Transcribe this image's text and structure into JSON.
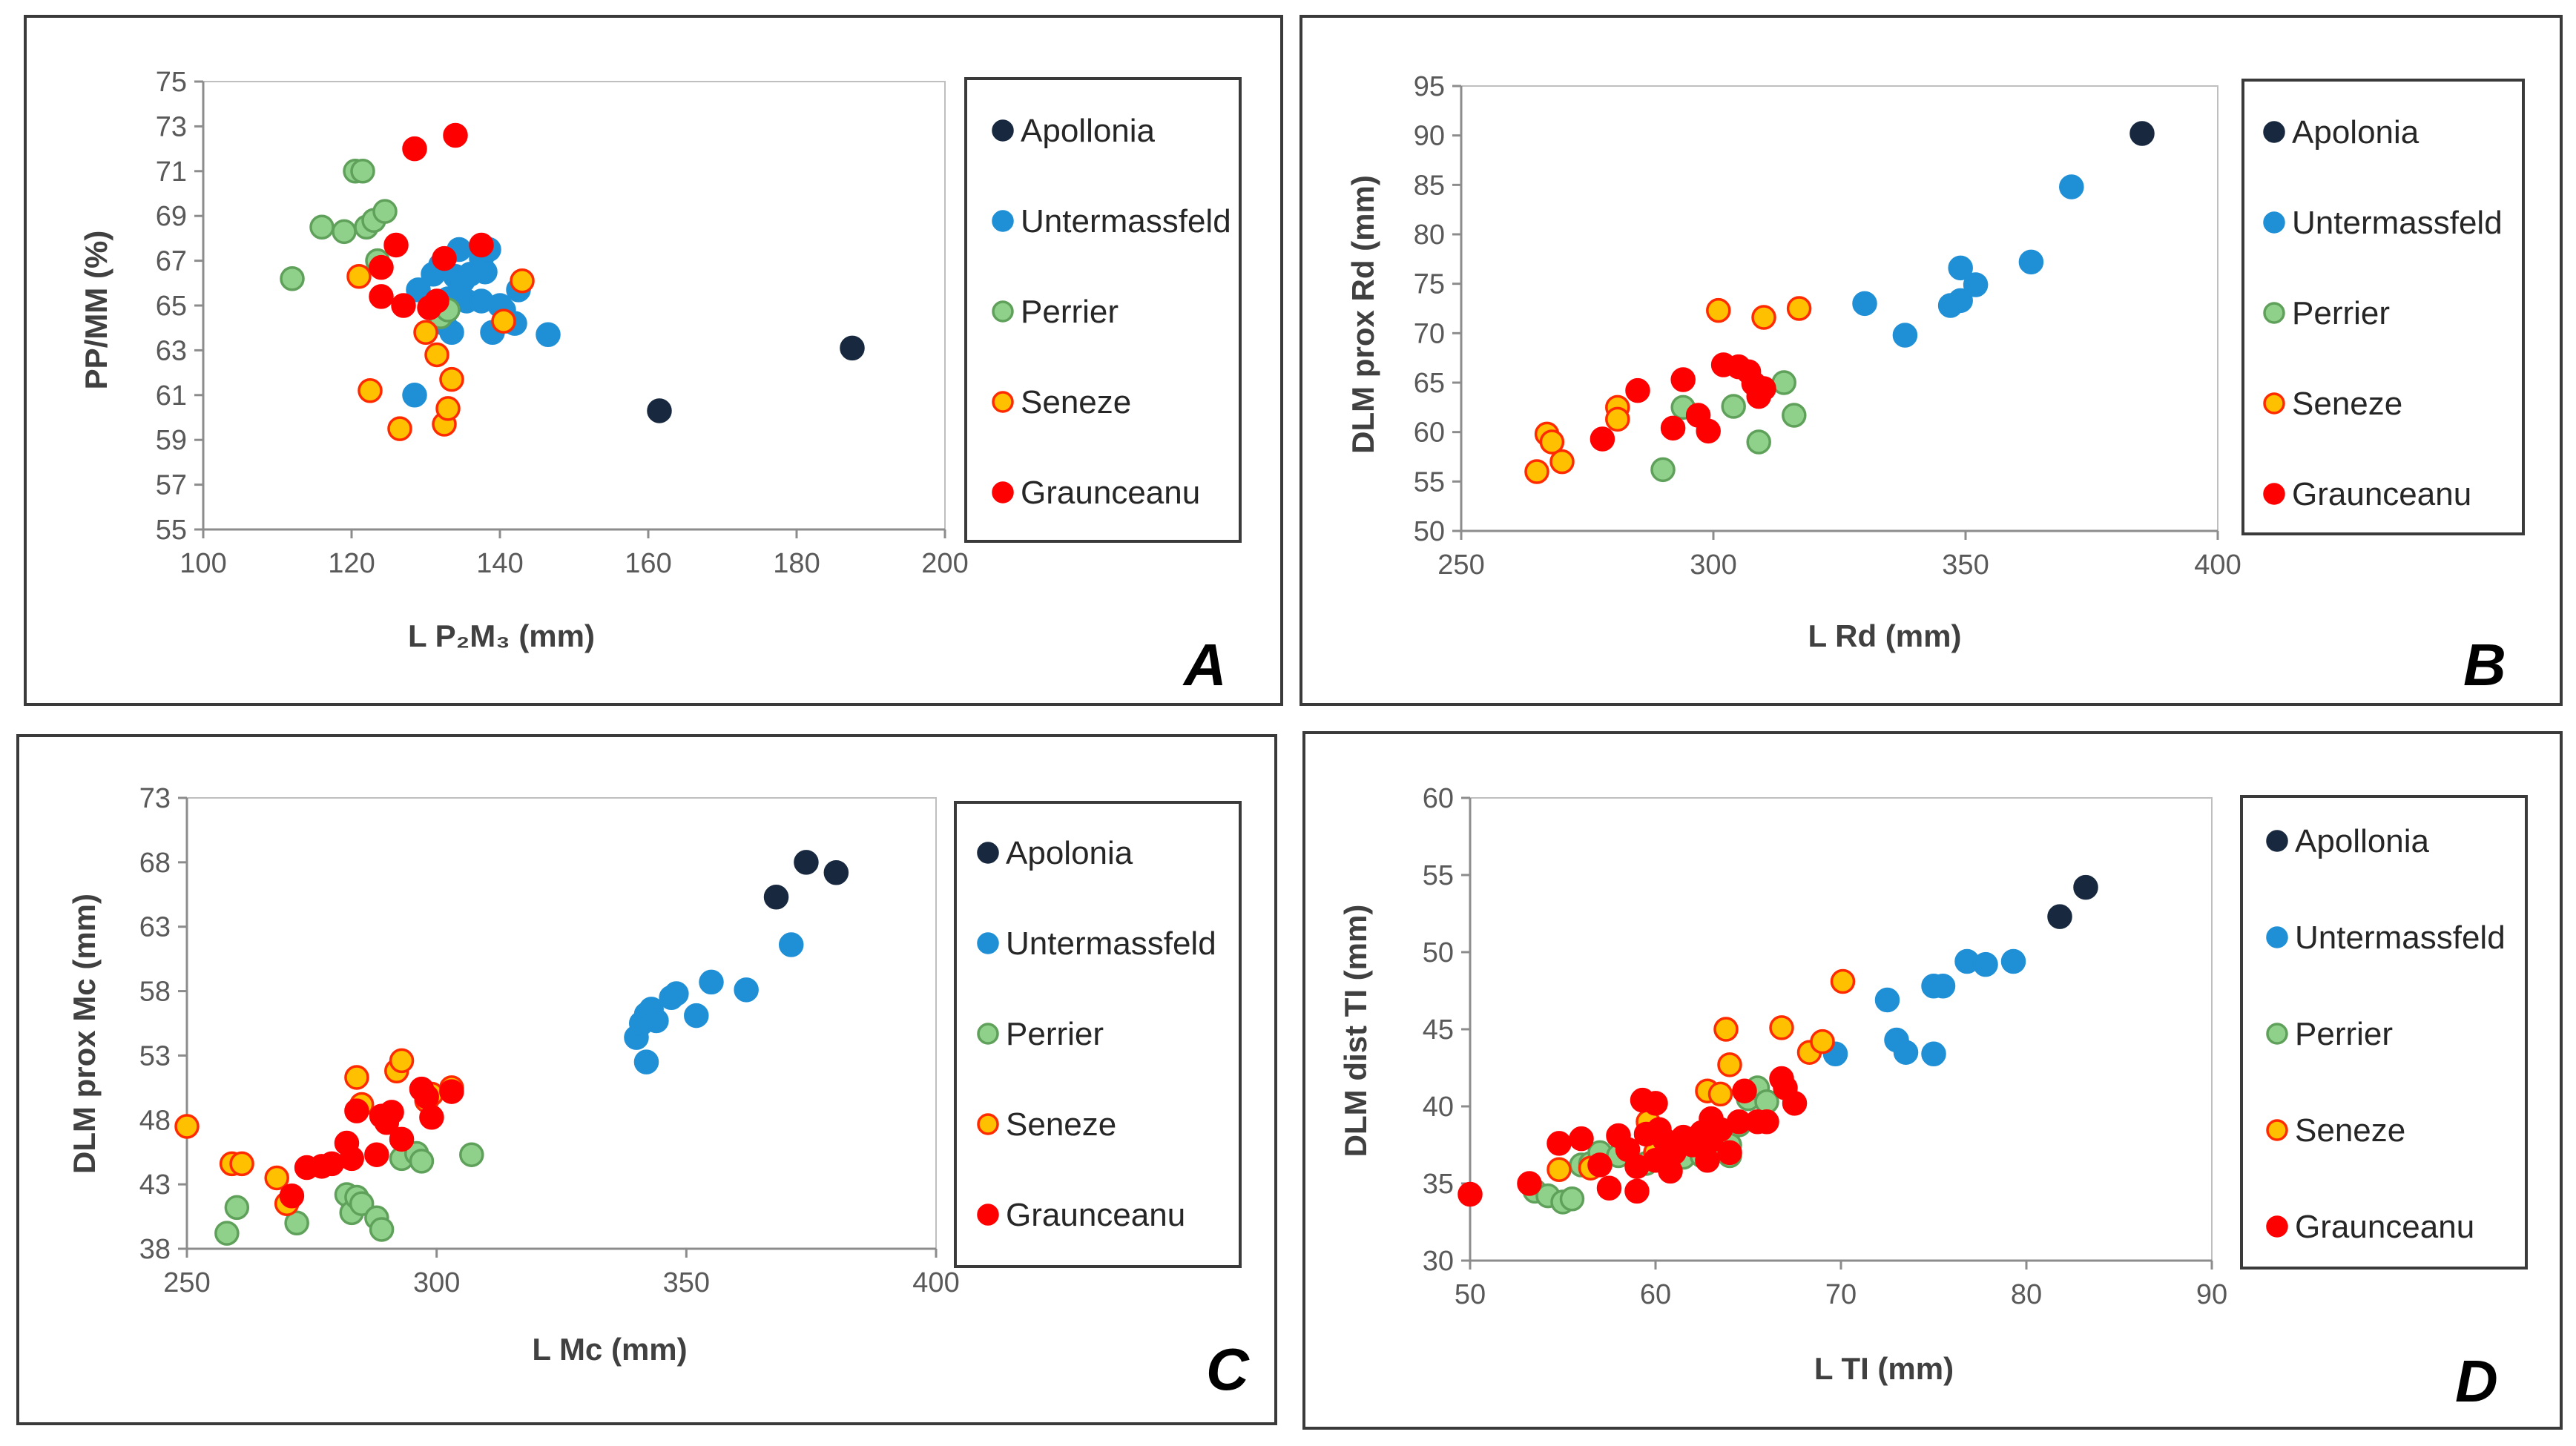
{
  "series_styles": {
    "Apollonia": {
      "fill": "#17283F",
      "stroke": "#17283F"
    },
    "Untermassfeld": {
      "fill": "#1F8FD6",
      "stroke": "#1F8FD6"
    },
    "Perrier": {
      "fill": "#8FD18A",
      "stroke": "#5FA05A"
    },
    "Seneze": {
      "fill": "#FFC000",
      "stroke": "#FF2A00"
    },
    "Graunceanu": {
      "fill": "#FF0000",
      "stroke": "#FF0000"
    }
  },
  "chart_data": [
    {
      "panel": "A",
      "type": "scatter",
      "xlabel": "L P₂M₃ (mm)",
      "ylabel": "PP/MM (%)",
      "xlim": [
        100,
        200
      ],
      "ylim": [
        55,
        75
      ],
      "xticks": [
        100,
        120,
        140,
        160,
        180,
        200
      ],
      "yticks": [
        55,
        57,
        59,
        61,
        63,
        65,
        67,
        69,
        71,
        73,
        75
      ],
      "legend": [
        "Apollonia",
        "Untermassfeld",
        "Perrier",
        "Seneze",
        "Graunceanu"
      ],
      "series": [
        {
          "name": "Apollonia",
          "points": [
            [
              161.5,
              60.3
            ],
            [
              187.5,
              63.1
            ]
          ]
        },
        {
          "name": "Untermassfeld",
          "points": [
            [
              128.5,
              61.0
            ],
            [
              129.0,
              65.7
            ],
            [
              131.0,
              66.4
            ],
            [
              132.0,
              66.8
            ],
            [
              132.5,
              64.2
            ],
            [
              133.0,
              65.3
            ],
            [
              133.5,
              63.8
            ],
            [
              134.0,
              66.3
            ],
            [
              134.5,
              67.5
            ],
            [
              135.0,
              66.1
            ],
            [
              135.5,
              65.2
            ],
            [
              136.0,
              66.4
            ],
            [
              137.5,
              67.1
            ],
            [
              137.5,
              65.2
            ],
            [
              138.0,
              66.5
            ],
            [
              138.5,
              67.5
            ],
            [
              139.0,
              63.8
            ],
            [
              140.0,
              65.0
            ],
            [
              140.5,
              64.8
            ],
            [
              141.0,
              64.3
            ],
            [
              142.0,
              64.2
            ],
            [
              142.5,
              65.7
            ],
            [
              146.5,
              63.7
            ]
          ]
        },
        {
          "name": "Perrier",
          "points": [
            [
              112.0,
              66.2
            ],
            [
              116.0,
              68.5
            ],
            [
              119.0,
              68.3
            ],
            [
              120.5,
              71.0
            ],
            [
              121.5,
              71.0
            ],
            [
              122.0,
              68.5
            ],
            [
              123.0,
              68.8
            ],
            [
              123.5,
              67.0
            ],
            [
              124.5,
              69.2
            ],
            [
              132.0,
              64.5
            ],
            [
              133.0,
              64.8
            ]
          ]
        },
        {
          "name": "Seneze",
          "points": [
            [
              121.0,
              66.3
            ],
            [
              122.5,
              61.2
            ],
            [
              126.5,
              59.5
            ],
            [
              130.0,
              63.8
            ],
            [
              131.5,
              62.8
            ],
            [
              132.5,
              59.7
            ],
            [
              133.0,
              60.4
            ],
            [
              133.5,
              61.7
            ],
            [
              140.5,
              64.3
            ],
            [
              143.0,
              66.1
            ]
          ]
        },
        {
          "name": "Graunceanu",
          "points": [
            [
              124.0,
              66.7
            ],
            [
              124.0,
              65.4
            ],
            [
              126.0,
              67.7
            ],
            [
              127.0,
              65.0
            ],
            [
              128.5,
              72.0
            ],
            [
              130.5,
              64.9
            ],
            [
              131.5,
              65.2
            ],
            [
              132.5,
              67.1
            ],
            [
              134.0,
              72.6
            ],
            [
              137.5,
              67.7
            ]
          ]
        }
      ],
      "letter": "A"
    },
    {
      "panel": "B",
      "type": "scatter",
      "xlabel": "L Rd (mm)",
      "ylabel": "DLM prox Rd (mm)",
      "xlim": [
        250,
        400
      ],
      "ylim": [
        50,
        95
      ],
      "xticks": [
        250,
        300,
        350,
        400
      ],
      "yticks": [
        50,
        55,
        60,
        65,
        70,
        75,
        80,
        85,
        90,
        95
      ],
      "legend": [
        "Apolonia",
        "Untermassfeld",
        "Perrier",
        "Seneze",
        "Graunceanu"
      ],
      "series": [
        {
          "name": "Apollonia",
          "points": [
            [
              385,
              90.2
            ]
          ]
        },
        {
          "name": "Untermassfeld",
          "points": [
            [
              330,
              73.0
            ],
            [
              338,
              69.8
            ],
            [
              347,
              72.8
            ],
            [
              349,
              76.6
            ],
            [
              349,
              73.3
            ],
            [
              352,
              74.9
            ],
            [
              363,
              77.2
            ],
            [
              371,
              84.8
            ]
          ]
        },
        {
          "name": "Perrier",
          "points": [
            [
              290,
              56.2
            ],
            [
              294,
              62.5
            ],
            [
              304,
              62.6
            ],
            [
              309,
              59.0
            ],
            [
              314,
              65.0
            ],
            [
              316,
              61.7
            ]
          ]
        },
        {
          "name": "Seneze",
          "points": [
            [
              265,
              56.0
            ],
            [
              267,
              59.8
            ],
            [
              268,
              59.0
            ],
            [
              270,
              57.0
            ],
            [
              281,
              62.5
            ],
            [
              281,
              61.3
            ],
            [
              301,
              72.3
            ],
            [
              310,
              71.6
            ],
            [
              317,
              72.5
            ]
          ]
        },
        {
          "name": "Graunceanu",
          "points": [
            [
              278,
              59.3
            ],
            [
              285,
              64.2
            ],
            [
              292,
              60.4
            ],
            [
              294,
              65.3
            ],
            [
              297,
              61.7
            ],
            [
              299,
              60.1
            ],
            [
              302,
              66.8
            ],
            [
              305,
              66.6
            ],
            [
              307,
              66.1
            ],
            [
              308,
              64.9
            ],
            [
              309,
              63.6
            ],
            [
              310,
              64.4
            ]
          ]
        }
      ],
      "letter": "B"
    },
    {
      "panel": "C",
      "type": "scatter",
      "xlabel": "L Mc (mm)",
      "ylabel": "DLM prox Mc (mm)",
      "xlim": [
        250,
        400
      ],
      "ylim": [
        38,
        73
      ],
      "xticks": [
        250,
        300,
        350,
        400
      ],
      "yticks": [
        38,
        43,
        48,
        53,
        58,
        63,
        68,
        73
      ],
      "legend": [
        "Apolonia",
        "Untermassfeld",
        "Perrier",
        "Seneze",
        "Graunceanu"
      ],
      "series": [
        {
          "name": "Apollonia",
          "points": [
            [
              368,
              65.3
            ],
            [
              374,
              68.0
            ],
            [
              380,
              67.2
            ]
          ]
        },
        {
          "name": "Untermassfeld",
          "points": [
            [
              340,
              54.4
            ],
            [
              341,
              55.5
            ],
            [
              342,
              56.2
            ],
            [
              342,
              52.5
            ],
            [
              343,
              56.6
            ],
            [
              344,
              55.7
            ],
            [
              347,
              57.5
            ],
            [
              348,
              57.8
            ],
            [
              352,
              56.1
            ],
            [
              355,
              58.7
            ],
            [
              362,
              58.1
            ],
            [
              371,
              61.6
            ]
          ]
        },
        {
          "name": "Perrier",
          "points": [
            [
              258,
              39.2
            ],
            [
              260,
              41.2
            ],
            [
              272,
              40.0
            ],
            [
              282,
              42.2
            ],
            [
              283,
              40.8
            ],
            [
              284,
              42.0
            ],
            [
              285,
              41.5
            ],
            [
              288,
              40.4
            ],
            [
              289,
              39.5
            ],
            [
              293,
              45.0
            ],
            [
              296,
              45.4
            ],
            [
              297,
              44.8
            ],
            [
              307,
              45.3
            ]
          ]
        },
        {
          "name": "Seneze",
          "points": [
            [
              250,
              47.5
            ],
            [
              259,
              44.6
            ],
            [
              261,
              44.6
            ],
            [
              268,
              43.5
            ],
            [
              270,
              41.5
            ],
            [
              284,
              51.3
            ],
            [
              285,
              49.2
            ],
            [
              292,
              51.8
            ],
            [
              293,
              52.6
            ],
            [
              298,
              49.5
            ],
            [
              299,
              50.0
            ],
            [
              303,
              50.5
            ]
          ]
        },
        {
          "name": "Graunceanu",
          "points": [
            [
              271,
              42.1
            ],
            [
              274,
              44.3
            ],
            [
              277,
              44.4
            ],
            [
              279,
              44.6
            ],
            [
              282,
              46.2
            ],
            [
              283,
              45.0
            ],
            [
              284,
              48.7
            ],
            [
              288,
              45.3
            ],
            [
              289,
              48.3
            ],
            [
              290,
              47.8
            ],
            [
              291,
              48.6
            ],
            [
              293,
              46.5
            ],
            [
              297,
              50.4
            ],
            [
              298,
              49.8
            ],
            [
              299,
              48.2
            ],
            [
              303,
              50.2
            ]
          ]
        }
      ],
      "letter": "C"
    },
    {
      "panel": "D",
      "type": "scatter",
      "xlabel": "L TI (mm)",
      "ylabel": "DLM dist TI (mm)",
      "xlim": [
        50,
        90
      ],
      "ylim": [
        30,
        60
      ],
      "xticks": [
        50,
        60,
        70,
        80,
        90
      ],
      "yticks": [
        30,
        35,
        40,
        45,
        50,
        55,
        60
      ],
      "legend": [
        "Apollonia",
        "Untermassfeld",
        "Perrier",
        "Seneze",
        "Graunceanu"
      ],
      "series": [
        {
          "name": "Apollonia",
          "points": [
            [
              81.8,
              52.3
            ],
            [
              83.2,
              54.2
            ]
          ]
        },
        {
          "name": "Untermassfeld",
          "points": [
            [
              69.7,
              43.4
            ],
            [
              72.5,
              46.9
            ],
            [
              73.0,
              44.3
            ],
            [
              73.5,
              43.5
            ],
            [
              75.0,
              47.8
            ],
            [
              75.0,
              43.4
            ],
            [
              75.5,
              47.8
            ],
            [
              76.8,
              49.4
            ],
            [
              77.8,
              49.2
            ],
            [
              79.3,
              49.4
            ]
          ]
        },
        {
          "name": "Perrier",
          "points": [
            [
              53.5,
              34.5
            ],
            [
              54.2,
              34.2
            ],
            [
              55.0,
              33.8
            ],
            [
              55.5,
              34.0
            ],
            [
              56.0,
              36.2
            ],
            [
              56.5,
              36.3
            ],
            [
              57.0,
              37.0
            ],
            [
              58.0,
              36.8
            ],
            [
              59.5,
              36.3
            ],
            [
              60.5,
              37.5
            ],
            [
              61.5,
              36.7
            ],
            [
              62.5,
              36.8
            ],
            [
              63.0,
              37.1
            ],
            [
              64.0,
              37.5
            ],
            [
              64.0,
              36.8
            ],
            [
              64.5,
              38.8
            ],
            [
              65.0,
              40.5
            ],
            [
              65.5,
              41.2
            ],
            [
              66.0,
              40.3
            ]
          ]
        },
        {
          "name": "Seneze",
          "points": [
            [
              54.8,
              35.9
            ],
            [
              56.5,
              36.0
            ],
            [
              59.6,
              39.0
            ],
            [
              60.0,
              37.0
            ],
            [
              62.8,
              41.0
            ],
            [
              63.5,
              40.8
            ],
            [
              63.8,
              45.0
            ],
            [
              64.0,
              42.7
            ],
            [
              66.8,
              45.1
            ],
            [
              68.3,
              43.5
            ],
            [
              69.0,
              44.2
            ],
            [
              70.1,
              48.1
            ]
          ]
        },
        {
          "name": "Graunceanu",
          "points": [
            [
              50.0,
              34.3
            ],
            [
              53.2,
              35.0
            ],
            [
              54.8,
              37.6
            ],
            [
              56.0,
              37.9
            ],
            [
              57.0,
              36.2
            ],
            [
              57.5,
              34.7
            ],
            [
              58.0,
              38.1
            ],
            [
              58.5,
              37.2
            ],
            [
              59.0,
              34.5
            ],
            [
              59.0,
              36.1
            ],
            [
              59.3,
              40.4
            ],
            [
              59.5,
              38.2
            ],
            [
              60.0,
              40.2
            ],
            [
              60.0,
              36.5
            ],
            [
              60.2,
              38.5
            ],
            [
              60.5,
              37.8
            ],
            [
              60.8,
              35.8
            ],
            [
              61.0,
              37.0
            ],
            [
              61.5,
              38.0
            ],
            [
              62.0,
              37.5
            ],
            [
              62.5,
              38.3
            ],
            [
              62.8,
              36.5
            ],
            [
              63.0,
              37.8
            ],
            [
              63.0,
              39.2
            ],
            [
              63.5,
              38.5
            ],
            [
              64.0,
              37.0
            ],
            [
              64.5,
              39.0
            ],
            [
              64.8,
              41.0
            ],
            [
              65.5,
              39.0
            ],
            [
              66.0,
              39.0
            ],
            [
              66.8,
              41.8
            ],
            [
              67.0,
              41.2
            ],
            [
              67.5,
              40.2
            ]
          ]
        }
      ],
      "letter": "D"
    }
  ]
}
